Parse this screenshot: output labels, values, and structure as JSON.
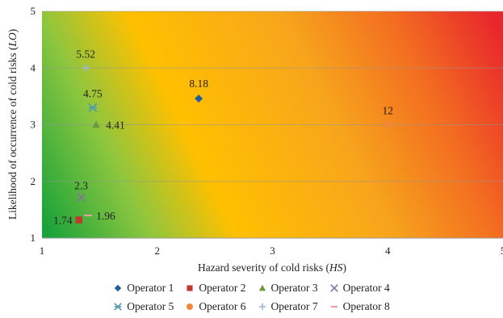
{
  "chart_data": {
    "type": "scatter",
    "title": "",
    "xlabel": "Hazard severity of cold risks (HS)",
    "ylabel": "Likelihood of occurrence of cold risks (LO)",
    "xlabel_parts": [
      "Hazard severity of cold risks (",
      "HS",
      ")"
    ],
    "ylabel_parts": [
      "Likelihood of occurrence of cold risks (",
      "LO",
      ")"
    ],
    "xlim": [
      1,
      5
    ],
    "ylim": [
      1,
      5
    ],
    "xticks": [
      1,
      2,
      3,
      4,
      5
    ],
    "yticks": [
      1,
      2,
      3,
      4,
      5
    ],
    "grid": "horizontal",
    "background": "risk gradient green-yellow-orange-red",
    "gradient_colors": [
      "#1aa33a",
      "#8cc63f",
      "#ffc000",
      "#f7a51c",
      "#f36c21",
      "#e8272c"
    ],
    "legend_position": "bottom",
    "series": [
      {
        "name": "Operator 1",
        "marker": "diamond",
        "color": "#1f5fa0",
        "x": 2.36,
        "y": 3.46,
        "label": "8.18"
      },
      {
        "name": "Operator 2",
        "marker": "square",
        "color": "#c0392b",
        "x": 1.32,
        "y": 1.32,
        "label": "1.74"
      },
      {
        "name": "Operator 3",
        "marker": "triangle",
        "color": "#6f9a3c",
        "x": 1.47,
        "y": 3.0,
        "label": "4.41"
      },
      {
        "name": "Operator 4",
        "marker": "x",
        "color": "#8a6fa6",
        "x": 1.34,
        "y": 1.72,
        "label": "2.3"
      },
      {
        "name": "Operator 5",
        "marker": "star",
        "color": "#4b9ab0",
        "x": 1.44,
        "y": 3.3,
        "label": "4.75"
      },
      {
        "name": "Operator 6",
        "marker": "circle",
        "color": "#f0883a",
        "x": 4.0,
        "y": 3.0,
        "label": "12"
      },
      {
        "name": "Operator 7",
        "marker": "plus",
        "color": "#9db4d6",
        "x": 1.38,
        "y": 4.0,
        "label": "5.52"
      },
      {
        "name": "Operator 8",
        "marker": "dash",
        "color": "#e8a0a0",
        "x": 1.4,
        "y": 1.4,
        "label": "1.96"
      }
    ]
  }
}
